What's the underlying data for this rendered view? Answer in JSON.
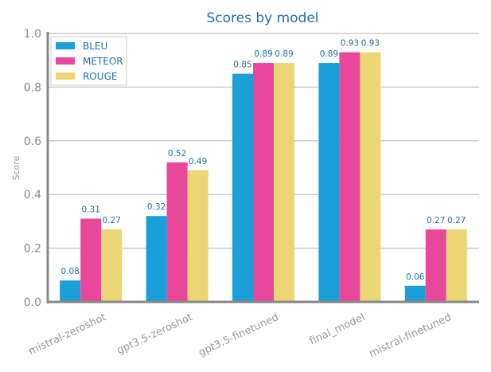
{
  "chart_data": {
    "type": "bar",
    "title": "Scores by model",
    "xlabel": "",
    "ylabel": "Score",
    "ylim": [
      0,
      1.0
    ],
    "yticks": [
      "0.0",
      "0.2",
      "0.4",
      "0.6",
      "0.8",
      "1.0"
    ],
    "grid": "horizontal",
    "legend_position": "top-left",
    "categories": [
      "mistral-zeroshot",
      "gpt3.5-zeroshot",
      "gpt3.5-finetuned",
      "final_model",
      "mistral-finetuned"
    ],
    "series": [
      {
        "name": "BLEU",
        "color": "#1b9fd8",
        "values": [
          0.08,
          0.32,
          0.85,
          0.89,
          0.06
        ]
      },
      {
        "name": "METEOR",
        "color": "#e8479b",
        "values": [
          0.31,
          0.52,
          0.89,
          0.93,
          0.27
        ]
      },
      {
        "name": "ROUGE",
        "color": "#ebd575",
        "values": [
          0.27,
          0.49,
          0.89,
          0.93,
          0.27
        ]
      }
    ]
  }
}
